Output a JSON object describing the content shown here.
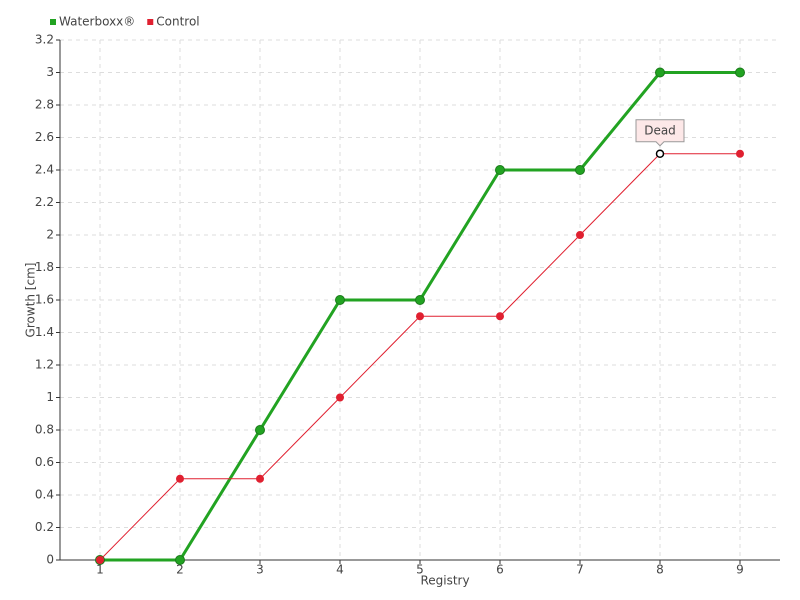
{
  "chart_data": {
    "type": "line",
    "x": [
      1,
      2,
      3,
      4,
      5,
      6,
      7,
      8,
      9
    ],
    "series": [
      {
        "name": "Waterboxx®",
        "color": "#22a322",
        "values": [
          0,
          0,
          0.8,
          1.6,
          1.6,
          2.4,
          2.4,
          3.0,
          3.0
        ]
      },
      {
        "name": "Control",
        "color": "#e02030",
        "values": [
          0,
          0.5,
          0.5,
          1.0,
          1.5,
          1.5,
          2.0,
          2.5,
          2.5
        ]
      }
    ],
    "xlabel": "Registry",
    "ylabel": "Growth [cm]",
    "xlim": [
      0.5,
      9.5
    ],
    "xticks": [
      1,
      2,
      3,
      4,
      5,
      6,
      7,
      8,
      9
    ],
    "ylim": [
      0,
      3.2
    ],
    "yticks": [
      0,
      0.2,
      0.4,
      0.6,
      0.8,
      1,
      1.2,
      1.4,
      1.6,
      1.8,
      2,
      2.2,
      2.4,
      2.6,
      2.8,
      3,
      3.2
    ],
    "grid": true,
    "legend": "top-left",
    "annotations": [
      {
        "text": "Dead",
        "x": 8,
        "y": 2.5
      }
    ]
  }
}
